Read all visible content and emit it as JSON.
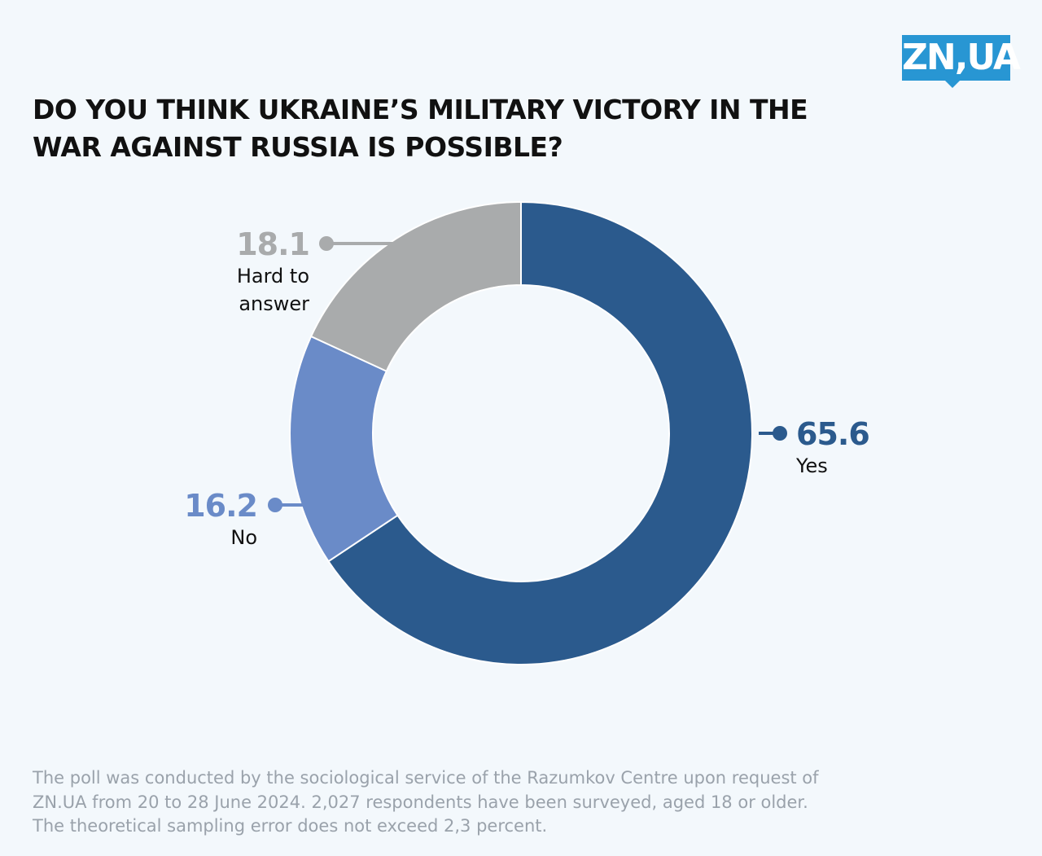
{
  "logo": {
    "text": "ZN,UA"
  },
  "title_lines": [
    "DO YOU THINK UKRAINE’S MILITARY VICTORY IN THE",
    "WAR AGAINST RUSSIA IS POSSIBLE?"
  ],
  "chart_data": {
    "type": "pie",
    "variant": "donut",
    "title": "DO YOU THINK UKRAINE’S MILITARY VICTORY IN THE WAR AGAINST RUSSIA IS POSSIBLE?",
    "slices": [
      {
        "label": "Yes",
        "label_lines": [
          "Yes"
        ],
        "value": 65.6,
        "value_text": "65.6",
        "color": "#2b5a8d",
        "label_color": "#2b5a8d"
      },
      {
        "label": "No",
        "label_lines": [
          "No"
        ],
        "value": 16.2,
        "value_text": "16.2",
        "color": "#6a8bc8",
        "label_color": "#6a8bc8"
      },
      {
        "label": "Hard to answer",
        "label_lines": [
          "Hard to",
          "answer"
        ],
        "value": 18.1,
        "value_text": "18.1",
        "color": "#a9abac",
        "label_color": "#a9abac"
      }
    ],
    "start": "12 o'clock, clockwise"
  },
  "footnote_lines": [
    "The poll was conducted by the sociological service of the Razumkov Centre upon request of",
    "ZN.UA from 20 to 28 June 2024. 2,027 respondents have been surveyed, aged 18 or older.",
    "The theoretical sampling error does not exceed 2,3 percent."
  ]
}
